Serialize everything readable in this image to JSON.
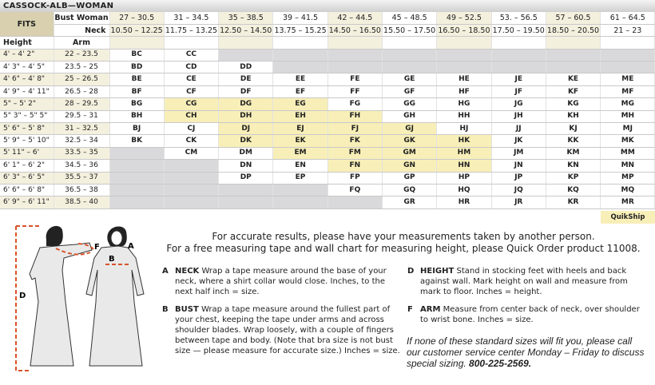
{
  "title": "CASSOCK-ALB—WOMAN",
  "header": {
    "fits": "FITS",
    "bust_label": "Bust Woman",
    "neck_label": "Neck",
    "height_label": "Height",
    "arm_label": "Arm",
    "bust": [
      "27 – 30.5",
      "31 – 34.5",
      "35 – 38.5",
      "39 – 41.5",
      "42 – 44.5",
      "45 – 48.5",
      "49 – 52.5",
      "53. – 56.5",
      "57 – 60.5",
      "61 – 64.5"
    ],
    "neck": [
      "10.50 – 12.25",
      "11.75 – 13.25",
      "12.50 – 14.50",
      "13.75 – 15.25",
      "14.50 – 16.50",
      "15.50 – 17.50",
      "16.50 – 18.50",
      "17.50 – 19.50",
      "18.50 – 20.50",
      "21 – 23"
    ]
  },
  "rows": [
    {
      "height": "4' – 4' 2\"",
      "arm": "22 – 23.5",
      "cells": [
        "BC",
        "CC",
        null,
        null,
        null,
        null,
        null,
        null,
        null,
        null
      ]
    },
    {
      "height": "4' 3\" – 4' 5\"",
      "arm": "23.5 – 25",
      "cells": [
        "BD",
        "CD",
        "DD",
        null,
        null,
        null,
        null,
        null,
        null,
        null
      ]
    },
    {
      "height": "4' 6\" – 4' 8\"",
      "arm": "25 – 26.5",
      "cells": [
        "BE",
        "CE",
        "DE",
        "EE",
        "FE",
        "GE",
        "HE",
        "JE",
        "KE",
        "ME"
      ]
    },
    {
      "height": "4' 9\" – 4' 11\"",
      "arm": "26.5 – 28",
      "cells": [
        "BF",
        "CF",
        "DF",
        "EF",
        "FF",
        "GF",
        "HF",
        "JF",
        "KF",
        "MF"
      ]
    },
    {
      "height": "5\" – 5' 2\"",
      "arm": "28 – 29.5",
      "cells": [
        "BG",
        "CG",
        "DG",
        "EG",
        "FG",
        "GG",
        "HG",
        "JG",
        "KG",
        "MG"
      ]
    },
    {
      "height": "5\" 3\" – 5\" 5\"",
      "arm": "29.5 – 31",
      "cells": [
        "BH",
        "CH",
        "DH",
        "EH",
        "FH",
        "GH",
        "HH",
        "JH",
        "KH",
        "MH"
      ]
    },
    {
      "height": "5' 6\" – 5' 8\"",
      "arm": "31 – 32.5",
      "cells": [
        "BJ",
        "CJ",
        "DJ",
        "EJ",
        "FJ",
        "GJ",
        "HJ",
        "JJ",
        "KJ",
        "MJ"
      ]
    },
    {
      "height": "5' 9\" – 5' 10\"",
      "arm": "32.5 – 34",
      "cells": [
        "BK",
        "CK",
        "DK",
        "EK",
        "FK",
        "GK",
        "HK",
        "JK",
        "KK",
        "MK"
      ]
    },
    {
      "height": "5' 11\" – 6'",
      "arm": "33.5 – 35",
      "cells": [
        null,
        "CM",
        "DM",
        "EM",
        "FM",
        "GM",
        "HM",
        "JM",
        "KM",
        "MM"
      ]
    },
    {
      "height": "6' 1\" – 6' 2\"",
      "arm": "34.5 – 36",
      "cells": [
        null,
        null,
        "DN",
        "EN",
        "FN",
        "GN",
        "HN",
        "JN",
        "KN",
        "MN"
      ]
    },
    {
      "height": "6' 3\" – 6' 5\"",
      "arm": "35.5 – 37",
      "cells": [
        null,
        null,
        "DP",
        "EP",
        "FP",
        "GP",
        "HP",
        "JP",
        "KP",
        "MP"
      ]
    },
    {
      "height": "6' 6\" – 6' 8\"",
      "arm": "36.5 – 38",
      "cells": [
        null,
        null,
        null,
        null,
        "FQ",
        "GQ",
        "HQ",
        "JQ",
        "KQ",
        "MQ"
      ]
    },
    {
      "height": "6' 9\" – 6' 11\"",
      "arm": "38.5 – 40",
      "cells": [
        null,
        null,
        null,
        null,
        null,
        "GR",
        "HR",
        "JR",
        "KR",
        "MR"
      ]
    }
  ],
  "quikship_sizes": [
    "CG",
    "DG",
    "EG",
    "CH",
    "DH",
    "EH",
    "FH",
    "DJ",
    "EJ",
    "FJ",
    "GJ",
    "DK",
    "EK",
    "FK",
    "GK",
    "HK",
    "EM",
    "FM",
    "GM",
    "HM",
    "FN",
    "GN",
    "HN"
  ],
  "quikship_label": "QuikShip",
  "colors": {
    "quikship": "#f8efb8",
    "unavailable": "#d9d9db",
    "fits": "#d8d0ae",
    "alt": "#f4f0de",
    "tape": "#d9532b"
  },
  "figure_labels": {
    "a": "A",
    "b": "B",
    "d": "D",
    "f": "F"
  },
  "headline1": "For accurate results, please have your measurements taken by another person.",
  "headline2": "For a free measuring tape and wall chart for measuring height, please Quick Order product 11008.",
  "instructions": [
    {
      "key": "A",
      "term": "NECK",
      "text": " Wrap a tape measure around the base of your neck, where a shirt collar would close. Inches, to the next half inch = size."
    },
    {
      "key": "B",
      "term": "BUST",
      "text": " Wrap a tape measure around the fullest part of your chest, keeping the tape under arms and across shoulder blades. Wrap loosely, with a couple of fingers between tape and body. (Note that bra size is not bust size — please measure for accurate size.) Inches = size."
    },
    {
      "key": "D",
      "term": "HEIGHT",
      "text": " Stand in stocking feet with heels and back against wall. Mark height on wall and measure from mark to floor. Inches = height."
    },
    {
      "key": "F",
      "term": "ARM",
      "text": " Measure from center back of neck, over shoulder to wrist bone. Inches = size."
    }
  ],
  "note": "If none of these standard sizes will fit you, please call our customer service center Monday – Friday to discuss special sizing. ",
  "phone": "800-225-2569."
}
